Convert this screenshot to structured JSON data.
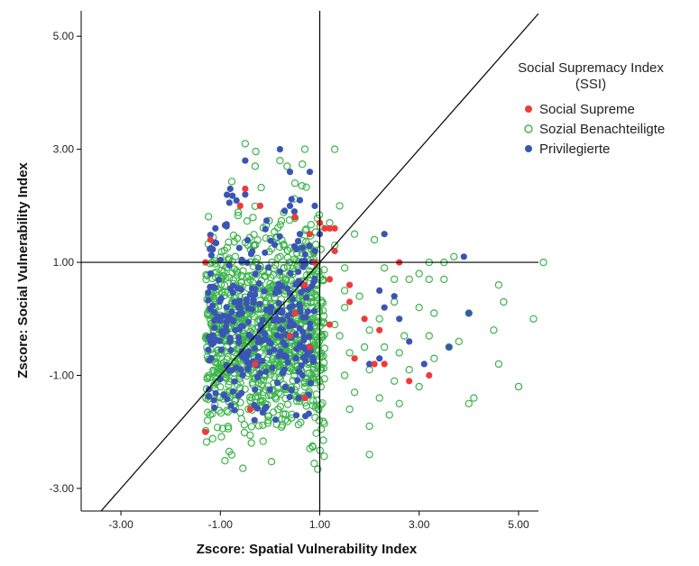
{
  "chart_data": {
    "type": "scatter",
    "xlabel": "Zscore:  Spatial Vulnerability Index",
    "ylabel": "Zscore:  Social Vulnerability Index",
    "xlim": [
      -3.8,
      5.4
    ],
    "ylim": [
      -3.4,
      5.45
    ],
    "xticks": [
      -3,
      -1,
      1,
      3,
      5
    ],
    "yticks": [
      -3,
      -1,
      1,
      3,
      5
    ],
    "xtick_labels": [
      "-3.00",
      "-1.00",
      "1.00",
      "3.00",
      "5.00"
    ],
    "ytick_labels": [
      "-3.00",
      "-1.00",
      "1.00",
      "3.00",
      "5.00"
    ],
    "reference_lines": {
      "horizontal_y": 1.0,
      "vertical_x": 1.0,
      "diagonal": "y = x"
    },
    "grid": false,
    "legend": {
      "title": "Social Supremacy Index (SSI)",
      "placement": "top-right",
      "entries": [
        {
          "label": "Social Supreme",
          "color": "#ee3b3b",
          "marker": "filled-circle"
        },
        {
          "label": "Sozial Benachteiligte",
          "color": "#3cb44b",
          "marker": "open-circle"
        },
        {
          "label": "Privilegierte",
          "color": "#3a55b4",
          "marker": "filled-circle"
        }
      ]
    },
    "series": [
      {
        "name": "Sozial Benachteiligte",
        "color": "#3cb44b",
        "marker": "open",
        "cloud": {
          "n": 1050,
          "x_range": [
            -1.3,
            1.1
          ],
          "y_center": -0.2,
          "y_sd": 0.9,
          "y_min": -2.7,
          "y_max": 3.1
        },
        "points": [
          [
            -0.5,
            3.1
          ],
          [
            0.7,
            3.0
          ],
          [
            -0.3,
            2.7
          ],
          [
            0.2,
            2.8
          ],
          [
            1.3,
            3.0
          ],
          [
            0.5,
            2.4
          ],
          [
            1.3,
            -0.1
          ],
          [
            1.4,
            -0.3
          ],
          [
            1.5,
            0.2
          ],
          [
            1.6,
            -0.6
          ],
          [
            1.8,
            0.4
          ],
          [
            2.0,
            -0.2
          ],
          [
            2.2,
            0.0
          ],
          [
            2.5,
            0.3
          ],
          [
            2.7,
            -0.3
          ],
          [
            3.0,
            0.2
          ],
          [
            3.3,
            0.1
          ],
          [
            3.6,
            -0.5
          ],
          [
            3.2,
            -0.3
          ],
          [
            1.5,
            -1.0
          ],
          [
            1.7,
            -1.3
          ],
          [
            2.0,
            -0.9
          ],
          [
            2.2,
            -1.4
          ],
          [
            2.5,
            -1.1
          ],
          [
            2.8,
            -0.9
          ],
          [
            3.0,
            -1.2
          ],
          [
            3.3,
            -0.7
          ],
          [
            2.6,
            -0.6
          ],
          [
            1.9,
            -0.5
          ],
          [
            2.3,
            -0.5
          ],
          [
            2.0,
            -1.9
          ],
          [
            2.0,
            -2.4
          ],
          [
            1.6,
            -1.6
          ],
          [
            2.4,
            -1.7
          ],
          [
            2.6,
            -1.5
          ],
          [
            3.2,
            1.0
          ],
          [
            3.5,
            1.0
          ],
          [
            3.7,
            1.1
          ],
          [
            3.0,
            0.8
          ],
          [
            3.2,
            0.7
          ],
          [
            3.5,
            0.7
          ],
          [
            2.5,
            0.7
          ],
          [
            2.8,
            0.7
          ],
          [
            4.1,
            -1.4
          ],
          [
            4.0,
            -1.5
          ],
          [
            4.6,
            -0.8
          ],
          [
            4.6,
            0.6
          ],
          [
            4.7,
            0.3
          ],
          [
            4.5,
            -0.2
          ],
          [
            5.3,
            0.0
          ],
          [
            5.5,
            1.0
          ],
          [
            5.0,
            -1.2
          ],
          [
            1.7,
            1.5
          ],
          [
            2.1,
            1.4
          ],
          [
            2.3,
            0.9
          ],
          [
            1.5,
            0.9
          ],
          [
            1.3,
            1.3
          ],
          [
            1.5,
            0.5
          ],
          [
            1.2,
            1.7
          ],
          [
            1.4,
            2.0
          ],
          [
            3.8,
            -0.4
          ],
          [
            4.0,
            0.1
          ]
        ]
      },
      {
        "name": "Privilegierte",
        "color": "#3a55b4",
        "marker": "filled",
        "cloud": {
          "n": 300,
          "x_range": [
            -1.25,
            0.9
          ],
          "y_center": -0.1,
          "y_sd": 0.85,
          "y_min": -1.8,
          "y_max": 2.2
        },
        "points": [
          [
            -0.5,
            2.8
          ],
          [
            -0.8,
            2.3
          ],
          [
            0.4,
            2.6
          ],
          [
            0.8,
            2.6
          ],
          [
            0.2,
            3.0
          ],
          [
            -0.5,
            2.2
          ],
          [
            0.4,
            2.0
          ],
          [
            0.6,
            2.1
          ],
          [
            0.9,
            2.0
          ],
          [
            1.0,
            1.5
          ],
          [
            2.2,
            0.5
          ],
          [
            2.3,
            0.2
          ],
          [
            2.6,
            0.0
          ],
          [
            2.8,
            -0.4
          ],
          [
            2.2,
            -0.7
          ],
          [
            2.0,
            -0.8
          ],
          [
            3.1,
            -0.8
          ],
          [
            2.5,
            0.4
          ],
          [
            2.3,
            1.5
          ],
          [
            3.9,
            1.1
          ],
          [
            4.0,
            0.1
          ],
          [
            3.6,
            -0.5
          ],
          [
            -1.2,
            0.8
          ],
          [
            -1.1,
            1.6
          ],
          [
            0.6,
            1.5
          ],
          [
            0.9,
            1.2
          ]
        ]
      },
      {
        "name": "Social Supreme",
        "color": "#ee3b3b",
        "marker": "filled",
        "points": [
          [
            -0.5,
            2.3
          ],
          [
            -0.6,
            2.0
          ],
          [
            -0.2,
            2.0
          ],
          [
            0.5,
            1.8
          ],
          [
            0.8,
            1.5
          ],
          [
            1.0,
            1.7
          ],
          [
            1.1,
            1.6
          ],
          [
            1.2,
            1.6
          ],
          [
            1.3,
            1.2
          ],
          [
            0.9,
            1.0
          ],
          [
            0.7,
            0.6
          ],
          [
            0.5,
            0.1
          ],
          [
            0.8,
            -0.5
          ],
          [
            1.3,
            1.6
          ],
          [
            1.6,
            0.6
          ],
          [
            1.6,
            0.3
          ],
          [
            1.9,
            0.0
          ],
          [
            2.2,
            -0.2
          ],
          [
            1.7,
            -0.7
          ],
          [
            2.1,
            -0.8
          ],
          [
            2.3,
            -0.8
          ],
          [
            2.6,
            1.0
          ],
          [
            2.8,
            -1.1
          ],
          [
            3.2,
            -1.0
          ],
          [
            1.2,
            0.7
          ],
          [
            1.2,
            -0.1
          ],
          [
            0.7,
            -1.4
          ],
          [
            -1.2,
            1.4
          ],
          [
            -1.3,
            1.0
          ],
          [
            -1.3,
            -2.0
          ],
          [
            -0.4,
            -1.6
          ],
          [
            -0.3,
            -0.8
          ],
          [
            0.4,
            -0.3
          ]
        ]
      }
    ]
  }
}
